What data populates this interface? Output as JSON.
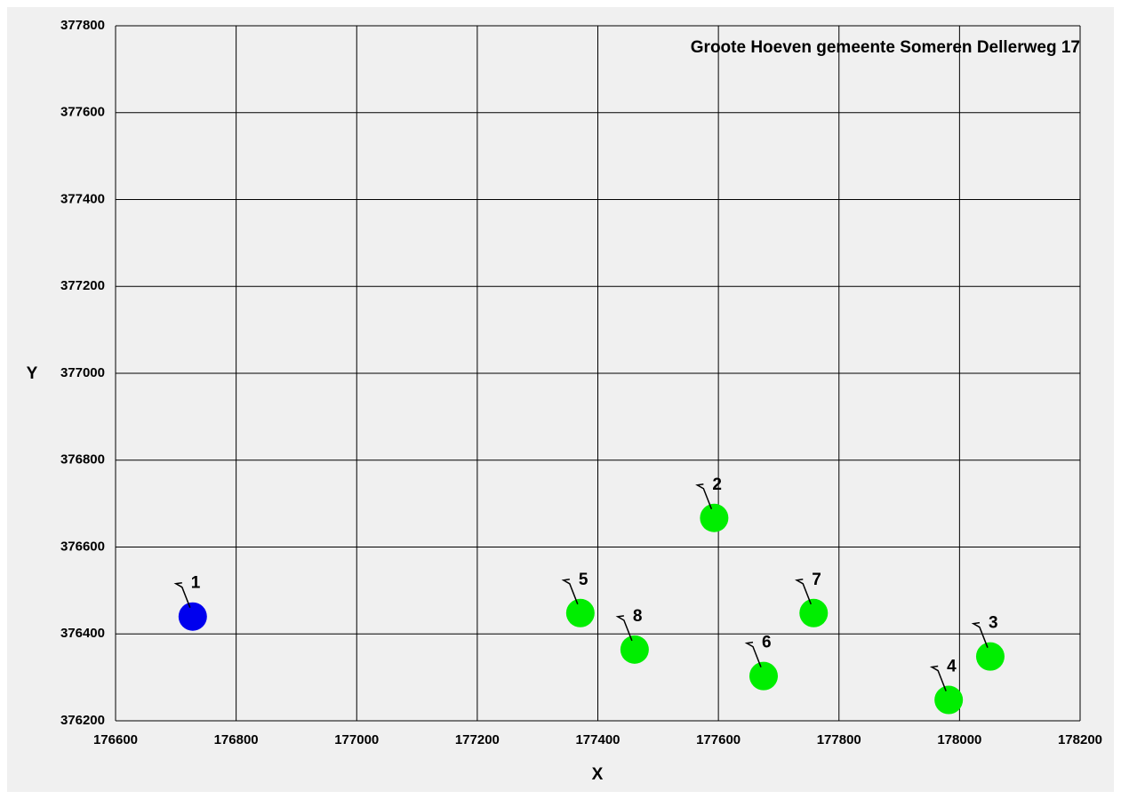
{
  "chart_data": {
    "type": "scatter",
    "title": "Groote Hoeven gemeente Someren Dellerweg 17",
    "xlabel": "X",
    "ylabel": "Y",
    "x": [
      176728,
      177593,
      178051,
      177982,
      177371,
      177675,
      177758,
      177461
    ],
    "values": [
      376440,
      376667,
      376348,
      376248,
      376448,
      376303,
      376448,
      376364
    ],
    "labels": [
      "1",
      "2",
      "3",
      "4",
      "5",
      "6",
      "7",
      "8"
    ],
    "colors": [
      "#0000ee",
      "#00ee00",
      "#00ee00",
      "#00ee00",
      "#00ee00",
      "#00ee00",
      "#00ee00",
      "#00ee00"
    ],
    "xlim": [
      176600,
      178200
    ],
    "xticks": [
      176600,
      176800,
      177000,
      177200,
      177400,
      177600,
      177800,
      178000,
      178200
    ],
    "ylim": [
      376200,
      377800
    ],
    "yticks": [
      376200,
      376400,
      376600,
      376800,
      377000,
      377200,
      377400,
      377600,
      377800
    ],
    "grid": true
  }
}
